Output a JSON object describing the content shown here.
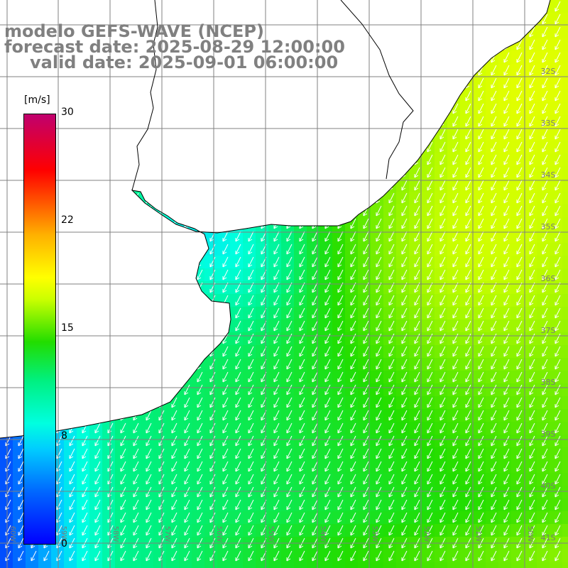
{
  "title": {
    "model": "modelo GEFS-WAVE (NCEP)",
    "forecast": "forecast date: 2025-08-29 12:00:00",
    "valid": "valid date: 2025-09-01 06:00:00"
  },
  "colorbar": {
    "unit": "[m/s]",
    "ticks": [
      "30",
      "22",
      "15",
      "8",
      "0"
    ],
    "tick_values": [
      30,
      22,
      15,
      8,
      0
    ],
    "range": [
      0,
      30
    ]
  },
  "lat_labels": [
    "32S",
    "33S",
    "34S",
    "35S",
    "36S",
    "37S",
    "38S",
    "39S",
    "40S",
    "41S"
  ],
  "lon_labels": [
    "60W",
    "59W",
    "58W",
    "57W",
    "56W",
    "55W",
    "54W",
    "53W",
    "52W",
    "51W",
    "50W"
  ],
  "colors": {
    "land": "#ffffff",
    "coast": "#000000",
    "grid": "#808080",
    "arrows": "#ffffff",
    "title": "#808080"
  }
}
